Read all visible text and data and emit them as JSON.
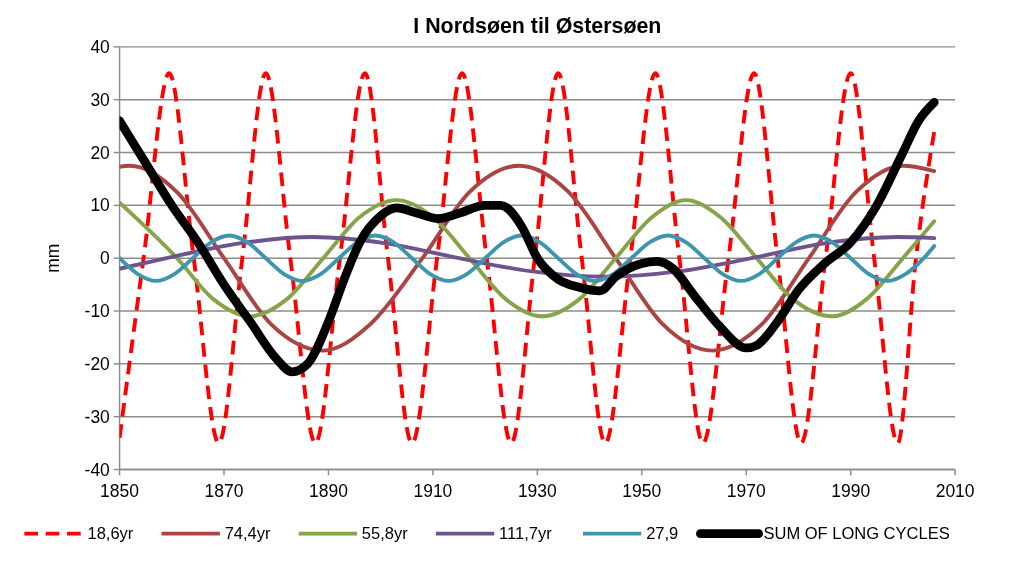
{
  "chart_data": {
    "type": "line",
    "title": "I Nordsøen til Østersøen",
    "ylabel": "mm",
    "xlim": [
      1850,
      2010
    ],
    "xticks": [
      1850,
      1870,
      1890,
      1910,
      1930,
      1950,
      1970,
      1990,
      2010
    ],
    "ylim": [
      -40,
      40
    ],
    "yticks": [
      -40,
      -30,
      -20,
      -10,
      0,
      10,
      20,
      30,
      40
    ],
    "grid": "y",
    "legend": "bottom",
    "series": [
      {
        "name": "18,6yr",
        "color": "#ff0000",
        "line_style": "dashed",
        "x": [
          1850,
          1854.6,
          1859.5,
          1864.2,
          1869,
          1873.5,
          1878,
          1882.7,
          1887.5,
          1892.2,
          1897,
          1901.4,
          1906,
          1910.8,
          1915.6,
          1920.3,
          1925,
          1929.5,
          1934,
          1938.5,
          1943,
          1947.8,
          1952.6,
          1957.2,
          1961.7,
          1966.6,
          1971.5,
          1976,
          1980.5,
          1985.2,
          1990,
          1994.5,
          1999,
          2002.5,
          2006
        ],
        "values": [
          -34,
          0,
          35,
          0,
          -35,
          0,
          35,
          0,
          -35,
          0,
          35,
          0,
          -35,
          0,
          35,
          0,
          -35,
          0,
          35,
          0,
          -35,
          0,
          35,
          0,
          -35,
          0,
          35,
          0,
          -35,
          0,
          35,
          0,
          -35,
          0,
          24
        ]
      },
      {
        "name": "74,4yr",
        "color": "#a94643",
        "line_style": "solid",
        "x": [
          1850,
          1852,
          1861,
          1870,
          1879,
          1889,
          1898,
          1908,
          1917,
          1926.5,
          1936,
          1945,
          1954,
          1963.5,
          1973,
          1982,
          1991,
          2000,
          2006
        ],
        "values": [
          17.3,
          17.5,
          12.5,
          0,
          -12.5,
          -17.5,
          -12.5,
          0,
          12.5,
          17.5,
          12.5,
          0,
          -12.5,
          -17.5,
          -12.5,
          0,
          12.5,
          17.5,
          16.5
        ]
      },
      {
        "name": "55,8yr",
        "color": "#86a44a",
        "line_style": "solid",
        "x": [
          1850,
          1861,
          1868,
          1875,
          1882,
          1889,
          1896,
          1903,
          1910,
          1917,
          1924,
          1931,
          1938,
          1945,
          1952,
          1958.5,
          1965,
          1972,
          1979,
          1986.5,
          1993,
          2000,
          2006
        ],
        "values": [
          10.5,
          0,
          -7.8,
          -11,
          -7.8,
          0,
          7.8,
          11,
          7.8,
          0,
          -7.8,
          -11,
          -7.8,
          0,
          7.8,
          11,
          7.8,
          0,
          -7.8,
          -11,
          -7.8,
          0,
          7
        ]
      },
      {
        "name": "111,7yr",
        "color": "#6e548d",
        "line_style": "solid",
        "x": [
          1850,
          1859,
          1873,
          1887,
          1901,
          1915,
          1929,
          1943,
          1957,
          1971,
          1985,
          1999,
          2006
        ],
        "values": [
          -2,
          0,
          2.8,
          4,
          2.8,
          0,
          -2.5,
          -3.5,
          -2.5,
          0,
          2.8,
          4,
          3.8
        ]
      },
      {
        "name": "27,9",
        "color": "#3d96ae",
        "line_style": "solid",
        "x": [
          1850,
          1853.5,
          1857,
          1860.5,
          1864,
          1867.5,
          1871,
          1874.5,
          1878,
          1881.5,
          1885,
          1888.5,
          1892,
          1895.5,
          1899,
          1902.5,
          1906,
          1909.5,
          1913,
          1916.5,
          1920,
          1923.5,
          1927,
          1930.5,
          1934,
          1937.5,
          1941,
          1944.5,
          1948,
          1951.5,
          1955,
          1958.5,
          1962,
          1965.5,
          1969,
          1972.5,
          1976,
          1979.5,
          1983,
          1986.5,
          1990,
          1993.5,
          1997,
          2000.5,
          2004,
          2006
        ],
        "values": [
          0,
          -3,
          -4.3,
          -3,
          0,
          3,
          4.3,
          3,
          0,
          -3,
          -4.3,
          -3,
          0,
          3,
          4.3,
          3,
          0,
          -3,
          -4.3,
          -3,
          0,
          3,
          4.3,
          3,
          0,
          -3,
          -4.3,
          -3,
          0,
          3,
          4.3,
          3,
          0,
          -3,
          -4.3,
          -3,
          0,
          3,
          4.3,
          3,
          0,
          -3,
          -4.3,
          -3,
          0,
          2.3
        ]
      },
      {
        "name": "SUM OF LONG CYCLES",
        "color": "#000000",
        "line_style": "solid",
        "x": [
          1850,
          1855,
          1860,
          1865,
          1870,
          1875,
          1880,
          1883,
          1886,
          1890,
          1893,
          1896,
          1900,
          1903,
          1907,
          1911,
          1915,
          1920,
          1923,
          1927,
          1930,
          1934,
          1938,
          1942,
          1945,
          1950,
          1953,
          1956,
          1960,
          1965,
          1970,
          1972,
          1976,
          1980,
          1985,
          1990,
          1995,
          2000,
          2003,
          2006
        ],
        "values": [
          26,
          18,
          10,
          3,
          -5,
          -12,
          -19,
          -21.5,
          -20,
          -12,
          -4,
          3,
          8,
          9.5,
          8.5,
          7.5,
          8.5,
          10,
          10,
          6,
          0,
          -4,
          -5.5,
          -6.2,
          -3.5,
          -1,
          -0.6,
          -2,
          -7,
          -13,
          -17,
          -16.5,
          -12,
          -6,
          -1,
          3,
          10,
          20,
          26,
          29.5
        ]
      }
    ]
  }
}
